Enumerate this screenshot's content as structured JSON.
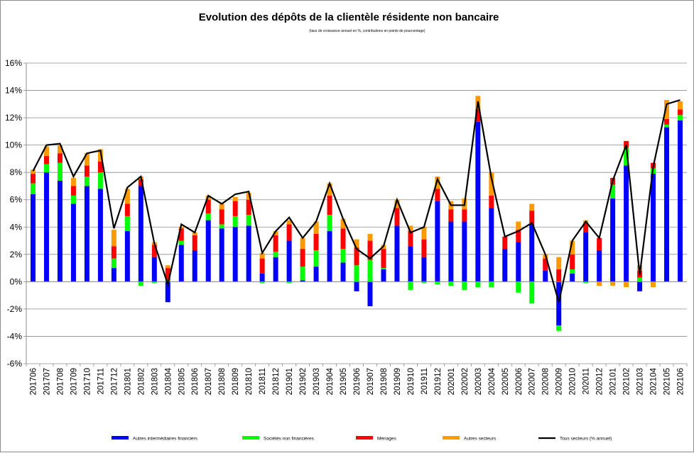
{
  "chart_data": {
    "type": "bar",
    "stacked": true,
    "title": "Evolution des dépôts de la clientèle résidente non bancaire",
    "subtitle": "(taux de croissance annuel en %, contributions en points de pourcentage)",
    "ylim": [
      -6,
      16
    ],
    "yticks": [
      -6,
      -4,
      -2,
      0,
      2,
      4,
      6,
      8,
      10,
      12,
      14,
      16
    ],
    "ytick_labels": [
      "-6%",
      "-4%",
      "-2%",
      "0%",
      "2%",
      "4%",
      "6%",
      "8%",
      "10%",
      "12%",
      "14%",
      "16%"
    ],
    "grid": true,
    "legend_position": "bottom",
    "categories": [
      "201706",
      "201707",
      "201708",
      "201709",
      "201710",
      "201711",
      "201712",
      "201801",
      "201802",
      "201803",
      "201804",
      "201805",
      "201806",
      "201807",
      "201808",
      "201809",
      "201810",
      "201811",
      "201812",
      "201901",
      "201902",
      "201903",
      "201904",
      "201905",
      "201906",
      "201907",
      "201908",
      "201909",
      "201910",
      "201911",
      "201912",
      "202001",
      "202002",
      "202003",
      "202004",
      "202005",
      "202006",
      "202007",
      "202008",
      "202009",
      "202010",
      "202011",
      "202012",
      "202101",
      "202102",
      "202103",
      "202104",
      "202105",
      "202106"
    ],
    "series": [
      {
        "name": "Autres intermédiaires financiers",
        "kind": "bar",
        "color": "#0000ff",
        "values": [
          6.4,
          8.0,
          7.4,
          5.7,
          7.0,
          6.8,
          1.0,
          3.7,
          7.0,
          1.8,
          -1.5,
          2.7,
          2.3,
          4.5,
          3.9,
          4.0,
          4.1,
          0.6,
          1.8,
          3.0,
          0.1,
          1.1,
          3.7,
          1.4,
          -0.7,
          -1.8,
          0.9,
          4.1,
          2.6,
          1.8,
          5.9,
          4.4,
          4.4,
          11.7,
          5.4,
          2.4,
          2.9,
          4.2,
          0.8,
          -3.2,
          0.6,
          3.6,
          2.3,
          6.1,
          8.5,
          -0.7,
          7.9,
          11.3,
          11.8
        ]
      },
      {
        "name": "Sociétés non financières",
        "kind": "bar",
        "color": "#00ff00",
        "values": [
          0.8,
          0.6,
          1.3,
          0.6,
          0.7,
          1.2,
          0.7,
          1.1,
          -0.3,
          -0.1,
          0.1,
          0.3,
          0.0,
          0.5,
          0.3,
          0.8,
          0.8,
          -0.1,
          0.4,
          -0.1,
          1.0,
          1.2,
          1.2,
          1.0,
          1.2,
          1.6,
          0.1,
          0.0,
          -0.6,
          -0.1,
          -0.2,
          -0.3,
          -0.6,
          -0.4,
          -0.4,
          0.0,
          -0.8,
          -1.6,
          0.0,
          -0.4,
          0.3,
          -0.1,
          0.0,
          1.0,
          1.3,
          0.3,
          0.4,
          0.2,
          0.4
        ]
      },
      {
        "name": "Ménages",
        "kind": "bar",
        "color": "#ff0000",
        "values": [
          0.7,
          0.6,
          0.7,
          0.7,
          0.8,
          0.8,
          0.9,
          0.9,
          0.5,
          0.9,
          0.9,
          0.9,
          1.1,
          1.0,
          1.1,
          1.1,
          1.1,
          1.1,
          1.2,
          1.2,
          1.3,
          1.2,
          1.4,
          1.5,
          1.3,
          1.4,
          1.4,
          1.3,
          1.1,
          1.3,
          0.9,
          0.9,
          0.9,
          0.9,
          0.9,
          0.9,
          0.9,
          1.0,
          0.9,
          0.9,
          1.1,
          0.7,
          0.9,
          0.5,
          0.5,
          0.5,
          0.4,
          0.4,
          0.4
        ]
      },
      {
        "name": "Autres secteurs",
        "kind": "bar",
        "color": "#ff9900",
        "values": [
          0.3,
          0.7,
          0.6,
          0.6,
          0.9,
          0.9,
          1.2,
          1.1,
          0.2,
          0.2,
          0.2,
          0.1,
          0.2,
          0.3,
          0.4,
          0.3,
          0.5,
          0.4,
          0.3,
          0.3,
          0.8,
          0.9,
          0.9,
          0.7,
          0.6,
          0.5,
          0.3,
          0.6,
          0.4,
          0.9,
          0.9,
          0.6,
          0.8,
          1.0,
          1.7,
          0.0,
          0.6,
          0.5,
          0.3,
          0.9,
          1.0,
          0.2,
          -0.3,
          -0.3,
          -0.4,
          0.4,
          -0.4,
          1.4,
          0.6
        ]
      },
      {
        "name": "Tous secteurs (% annuel)",
        "kind": "line",
        "color": "#000000",
        "values": [
          8.1,
          10.0,
          10.1,
          7.7,
          9.4,
          9.6,
          3.9,
          6.9,
          7.7,
          2.8,
          -0.2,
          4.2,
          3.6,
          6.3,
          5.7,
          6.4,
          6.6,
          2.1,
          3.7,
          4.7,
          3.2,
          4.4,
          7.2,
          4.6,
          2.4,
          1.7,
          2.6,
          6.0,
          3.6,
          4.0,
          7.5,
          5.6,
          5.6,
          13.2,
          7.6,
          3.3,
          3.7,
          4.3,
          2.0,
          -1.5,
          3.0,
          4.4,
          3.2,
          7.4,
          10.0,
          0.5,
          8.4,
          13.0,
          13.3
        ]
      }
    ]
  }
}
